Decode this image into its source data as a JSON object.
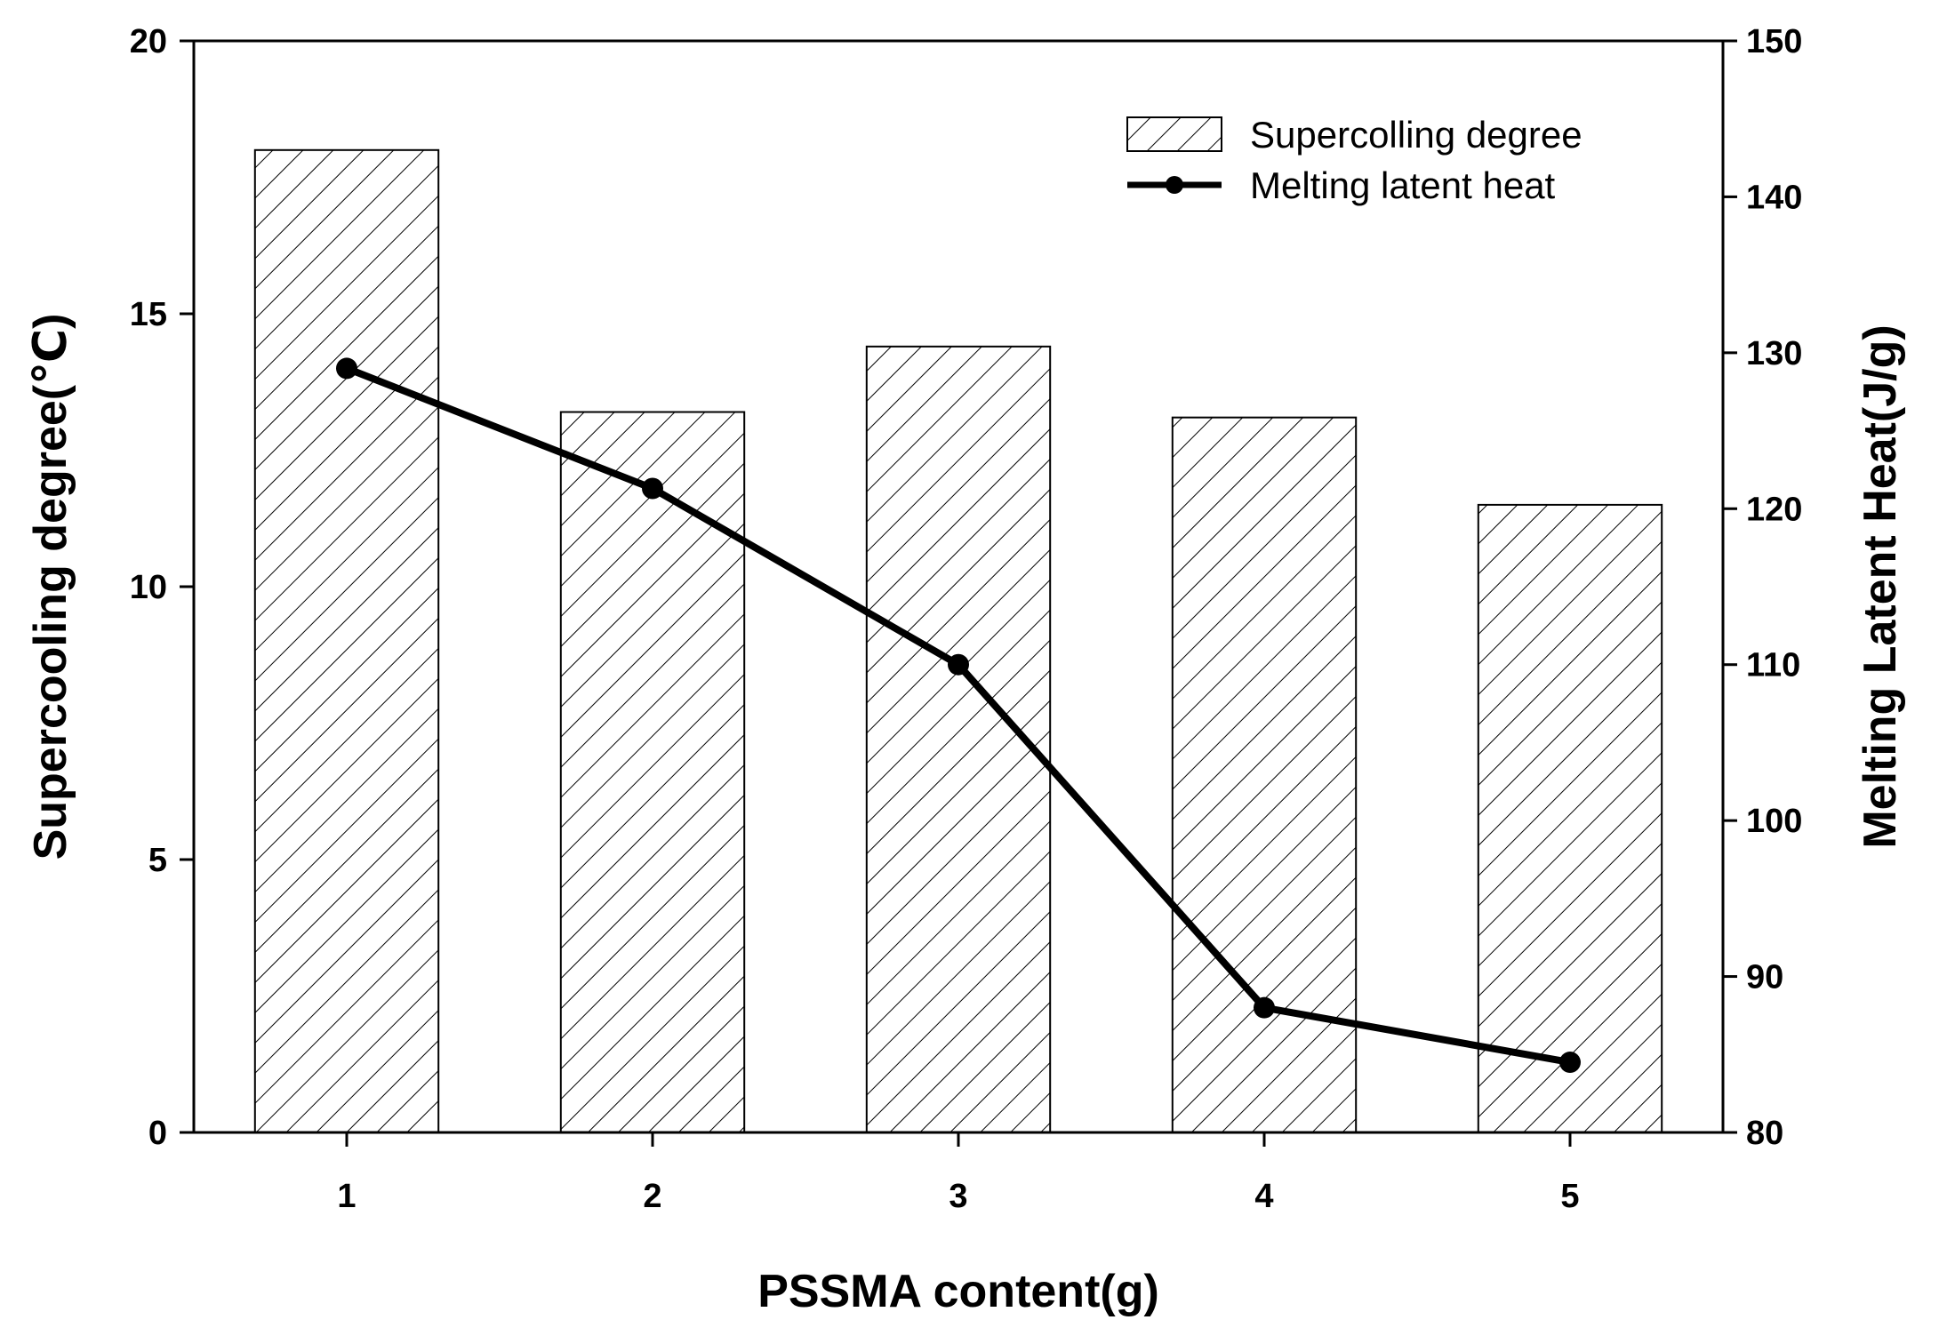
{
  "chart_data": {
    "type": "bar+line",
    "title": "",
    "xlabel": "PSSMA content(g)",
    "ylabel_left": "Supercooling degree(℃)",
    "ylabel_right": "Melting Latent Heat(J/g)",
    "categories": [
      "1",
      "2",
      "3",
      "4",
      "5"
    ],
    "ylim_left": [
      0,
      20
    ],
    "ylim_right": [
      80,
      150
    ],
    "yticks_left": [
      "0",
      "5",
      "10",
      "15",
      "20"
    ],
    "yticks_right": [
      "80",
      "90",
      "100",
      "110",
      "120",
      "130",
      "140",
      "150"
    ],
    "series": [
      {
        "name": "Supercolling degree",
        "type": "bar",
        "axis": "left",
        "pattern": "diagonal-hatch",
        "values": [
          18.0,
          13.2,
          14.4,
          13.1,
          11.5
        ]
      },
      {
        "name": "Melting latent heat",
        "type": "line",
        "axis": "right",
        "marker": "circle",
        "values": [
          129.0,
          121.3,
          110.0,
          88.0,
          84.5
        ]
      }
    ],
    "legend_position": "top-right",
    "grid": false
  }
}
